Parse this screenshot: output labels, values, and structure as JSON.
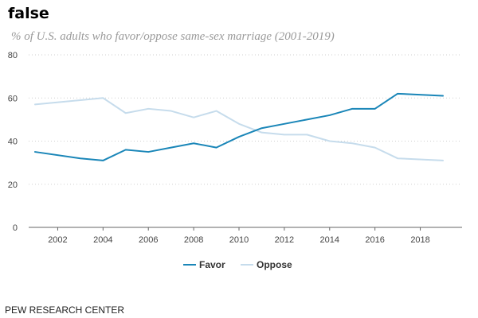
{
  "header": {
    "title": "false",
    "subtitle": "% of U.S. adults who favor/oppose same-sex marriage (2001-2019)"
  },
  "footer": {
    "source": "PEW RESEARCH CENTER"
  },
  "chart_data": {
    "type": "line",
    "title": "false",
    "subtitle": "% of U.S. adults who favor/oppose same-sex marriage (2001-2019)",
    "xlabel": "",
    "ylabel": "",
    "x": [
      2001,
      2002,
      2003,
      2004,
      2005,
      2006,
      2007,
      2008,
      2009,
      2010,
      2011,
      2012,
      2013,
      2014,
      2015,
      2016,
      2017,
      2018,
      2019
    ],
    "xlim": [
      2001,
      2019
    ],
    "ylim": [
      0,
      80
    ],
    "x_ticks": [
      2002,
      2004,
      2006,
      2008,
      2010,
      2012,
      2014,
      2016,
      2018
    ],
    "y_ticks": [
      0,
      20,
      40,
      60,
      80
    ],
    "grid": "horizontal dotted",
    "legend_position": "bottom-center",
    "series": [
      {
        "name": "Favor",
        "color": "#1a86b8",
        "values": [
          35,
          null,
          32,
          31,
          36,
          35,
          37,
          39,
          37,
          42,
          46,
          48,
          50,
          52,
          55,
          55,
          62,
          null,
          61
        ]
      },
      {
        "name": "Oppose",
        "color": "#c6dcec",
        "values": [
          57,
          null,
          59,
          60,
          53,
          55,
          54,
          51,
          54,
          48,
          44,
          43,
          43,
          40,
          39,
          37,
          32,
          null,
          31
        ]
      }
    ]
  }
}
